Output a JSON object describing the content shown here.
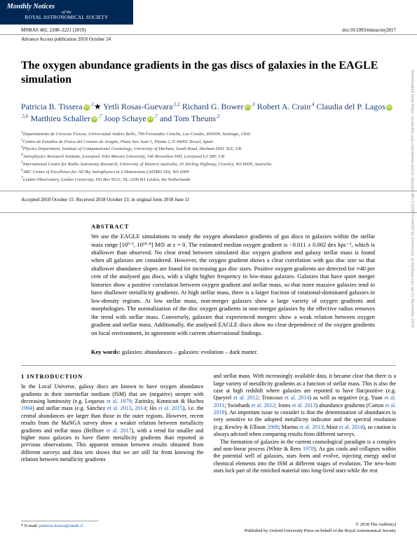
{
  "journal": {
    "name": "Monthly Notices",
    "ofthe": "of the",
    "society": "ROYAL ASTRONOMICAL SOCIETY",
    "citation": "MNRAS 482, 2208–2221 (2019)",
    "doi": "doi:10.1093/mnras/sty2817",
    "advance": "Advance Access publication 2018 October 24"
  },
  "title": "The oxygen abundance gradients in the gas discs of galaxies in the EAGLE simulation",
  "authors": [
    {
      "name": "Patricia B. Tissera",
      "orcid": true,
      "affil": "1",
      "star": true
    },
    {
      "name": "Yetli Rosas-Guevara",
      "orcid": false,
      "affil": "1,2"
    },
    {
      "name": "Richard G. Bower",
      "orcid": true,
      "affil": "3"
    },
    {
      "name": "Robert A. Crain",
      "orcid": false,
      "affil": "4"
    },
    {
      "name": "Claudia del P. Lagos",
      "orcid": true,
      "affil": "5,6"
    },
    {
      "name": "Matthieu Schaller",
      "orcid": true,
      "affil": "7"
    },
    {
      "name": "Joop Schaye",
      "orcid": true,
      "affil": "7"
    },
    {
      "name": "Tom Theuns",
      "orcid": false,
      "affil": "3"
    }
  ],
  "affiliations": [
    "Departamento de Ciencias Físicas, Universidad Andres Bello, 700 Fernandez Concha, Las Condes, 830000, Santiago, Chile",
    "Centro de Estudios de Física del Cosmos de Aragón, Plaza San Juan 1, Planta 2, E-44001 Teruel, Spain",
    "Physics Department, Institute of Computational Cosmology, University of Durham, South Road, Durham DH1 3LE, UK",
    "Astrophysics Research Institute, Liverpool John Moores University, 146 Brownlow Hill, Liverpool L3 5RF, UK",
    "International Centre for Radio Astronomy Research, University of Western Australia, 35 Stirling Highway, Crawley, WA 6009, Australia",
    "ARC Centre of Excellence for All Sky Astrophysics in 3 Dimensions (ASTRO 3D), WA 6009",
    "Leiden Observatory, Leiden University, PO Box 9513, NL-2300 RA Leiden, the Netherlands"
  ],
  "dates": "Accepted 2018 October 15. Received 2018 October 13; in original form 2018 June 11",
  "abstract": {
    "heading": "ABSTRACT",
    "text": "We use the EAGLE simulations to study the oxygen abundance gradients of gas discs in galaxies within the stellar mass range [10⁹·⁵, 10¹⁰·⁸] M⊙ at z = 0. The estimated median oxygen gradient is −0.011 ± 0.002 dex kpc⁻¹, which is shallower than observed. No clear trend between simulated disc oxygen gradient and galaxy stellar mass is found when all galaxies are considered. However, the oxygen gradient shows a clear correlation with gas disc size so that shallower abundance slopes are found for increasing gas disc sizes. Positive oxygen gradients are detected for ≈40 per cent of the analysed gas discs, with a slight higher frequency in low-mass galaxies. Galaxies that have quiet merger histories show a positive correlation between oxygen gradient and stellar mass, so that more massive galaxies tend to have shallower metallicity gradients. At high stellar mass, there is a larger fraction of rotational-dominated galaxies in low-density regions. At low stellar mass, non-merger galaxies show a large variety of oxygen gradients and morphologies. The normalization of the disc oxygen gradients in non-merger galaxies by the effective radius removes the trend with stellar mass. Conversely, galaxies that experienced mergers show a weak relation between oxygen gradient and stellar mass. Additionally, the analysed EAGLE discs show no clear dependence of the oxygen gradients on local environment, in agreement with current observational findings."
  },
  "keywords": {
    "label": "Key words:",
    "text": "galaxies: abundances – galaxies: evolution – dark matter."
  },
  "intro": {
    "heading": "1 INTRODUCTION",
    "col1": "In the Local Universe, galaxy discs are known to have oxygen abundance gradients in their interstellar medium (ISM) that are (negative) steeper with decreasing luminosity (e.g. Lequeux et al. 1979; Zaritsky, Kennicutt & Huchra 1994) and stellar mass (e.g. Sánchez et al. 2013, 2014; Ho et al. 2015), i.e. the central abundances are larger than those in the outer regions. However, recent results from the MaNGA survey show a weaker relation between metallicity gradients and stellar mass (Belfiore et al. 2017), with a trend for smaller and higher mass galaxies to have flatter metallicity gradients than reported in previous observations. This apparent tension between results obtained from different surveys and data sets shows that we are still far from knowing the relation between metallicity gradients",
    "col2": "and stellar mass. With increasingly available data, it became clear that there is a large variety of metallicity gradients as a function of stellar mass. This is also the case at high redshift where galaxies are reported to have flat/positive (e.g. Queyrel et al. 2012; Troncoso et al. 2014) as well as negative (e.g. Yuan et al. 2011; Swinbank et al. 2012; Jones et al. 2013) abundance gradients (Carton et al. 2018). An important issue to consider is that the determination of abundances is very sensitive to the adopted metallicity indicator and the spectral resolution (e.g. Kewley & Ellison 2008; Marino et al. 2013; Mast et al. 2014), so caution is always advised when comparing results from different surveys.\n    The formation of galaxies in the current cosmological paradigm is a complex and non-linear process (White & Rees 1978). As gas cools and collapses within the potential well of galaxies, stars form and evolve, injecting energy and/or chemical elements into the ISM at different stages of evolution. The new-born stars lock part of the enriched material into long-lived stars while the rest"
  },
  "footer": {
    "emailLabel": "* E-mail:",
    "email": "patricia.tissera@unab.cl",
    "copyright": "© 2018 The Author(s)",
    "publisher": "Published by Oxford University Press on behalf of the Royal Astronomical Society"
  },
  "sidetext": "Downloaded from https://academic.oup.com/mnras/article-abstract/482/2/2208/5144229 by University of Durham user on 21 November 2018"
}
